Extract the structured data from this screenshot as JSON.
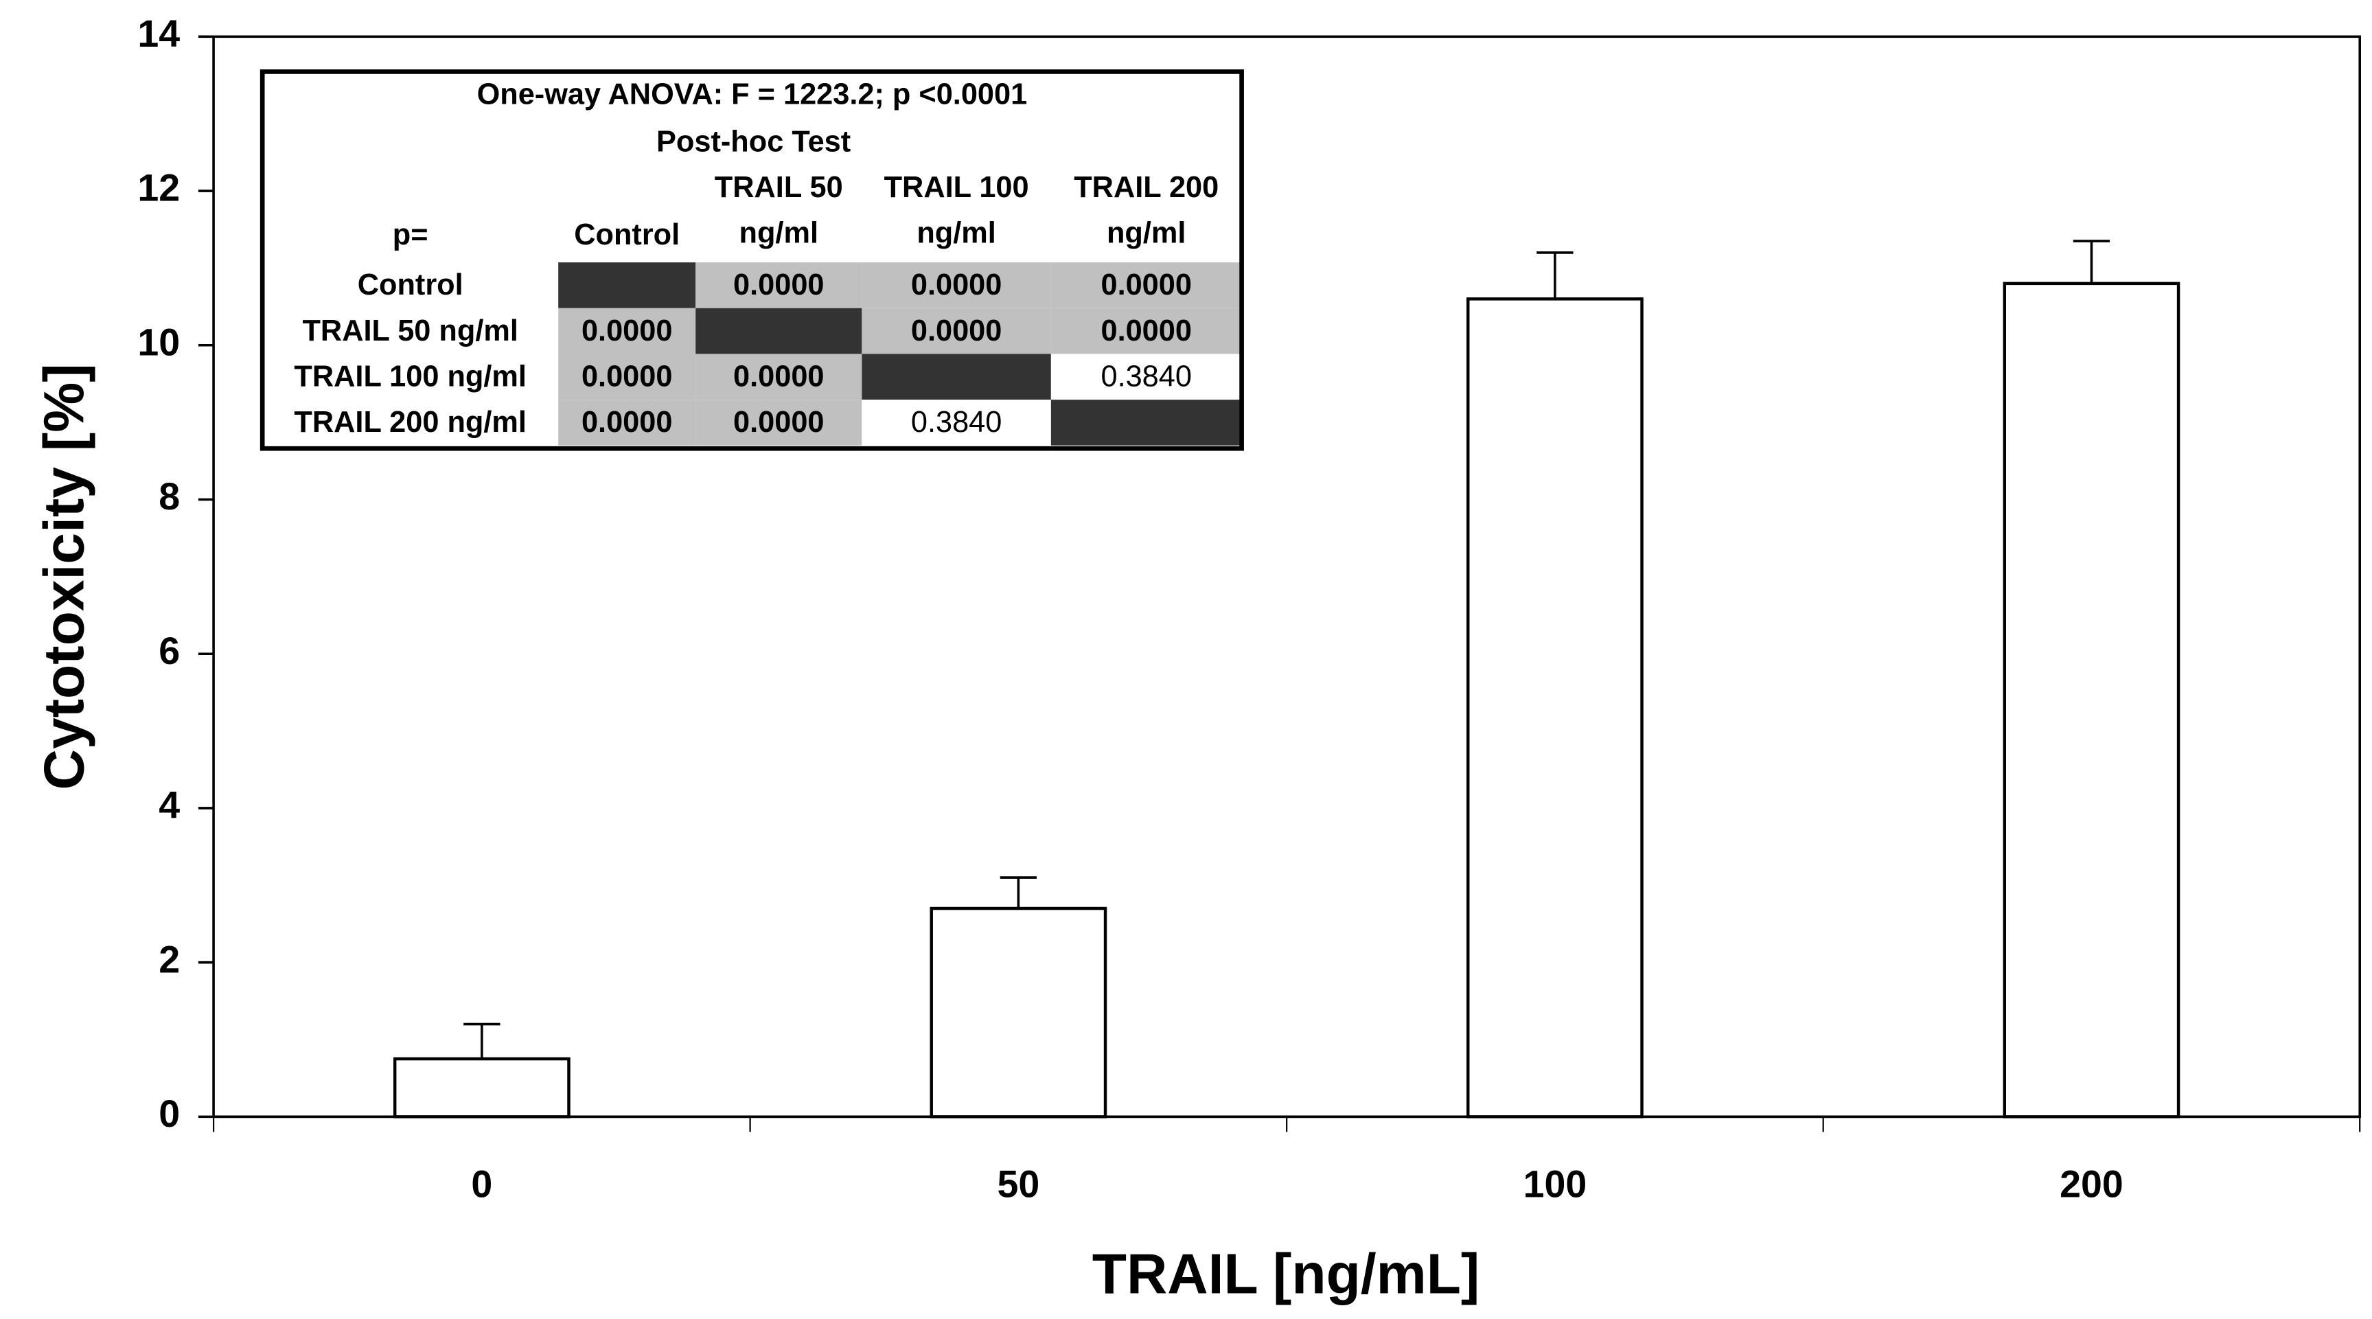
{
  "chart_data": {
    "type": "bar",
    "x_label": "TRAIL [ng/mL]",
    "y_label": "Cytotoxicity [%]",
    "categories": [
      "0",
      "50",
      "100",
      "200"
    ],
    "values": [
      0.75,
      2.7,
      10.6,
      10.8
    ],
    "errors": [
      0.45,
      0.4,
      0.6,
      0.55
    ],
    "color": "#ffffff",
    "ylim": [
      0,
      14
    ],
    "yticks": [
      0,
      2,
      4,
      6,
      8,
      10,
      12,
      14
    ],
    "grid": false,
    "inset_table": {
      "title": "One-way ANOVA:  F = 1223.2; p <0.0001",
      "subtitle": "Post-hoc Test",
      "header": [
        [
          "p="
        ],
        [
          "Control"
        ],
        [
          "TRAIL 50",
          "ng/ml"
        ],
        [
          "TRAIL 100",
          "ng/ml"
        ],
        [
          "TRAIL 200",
          "ng/ml"
        ]
      ],
      "rows": [
        [
          "Control",
          null,
          "0.0000",
          "0.0000",
          "0.0000"
        ],
        [
          "TRAIL 50 ng/ml",
          "0.0000",
          null,
          "0.0000",
          "0.0000"
        ],
        [
          "TRAIL 100 ng/ml",
          "0.0000",
          "0.0000",
          null,
          "0.3840"
        ],
        [
          "TRAIL 200 ng/ml",
          "0.0000",
          "0.0000",
          "0.3840",
          null
        ]
      ]
    }
  }
}
